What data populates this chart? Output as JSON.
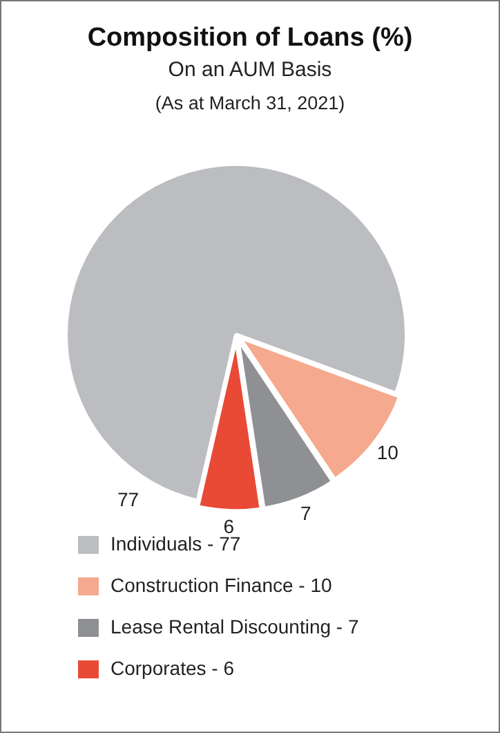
{
  "chart_data": {
    "type": "pie",
    "title": "Composition of Loans  (%)",
    "subtitle": "On an AUM Basis",
    "annotations": [
      "(As at March 31, 2021)"
    ],
    "categories": [
      "Individuals - 77",
      "Construction Finance - 10",
      "Lease Rental Discounting - 7",
      "Corporates - 6"
    ],
    "values": [
      77,
      10,
      7,
      6
    ],
    "colors": [
      "#bcbdc0",
      "#f5a98e",
      "#8f9094",
      "#e94a36"
    ],
    "data_labels": true,
    "legend": "bottom"
  }
}
